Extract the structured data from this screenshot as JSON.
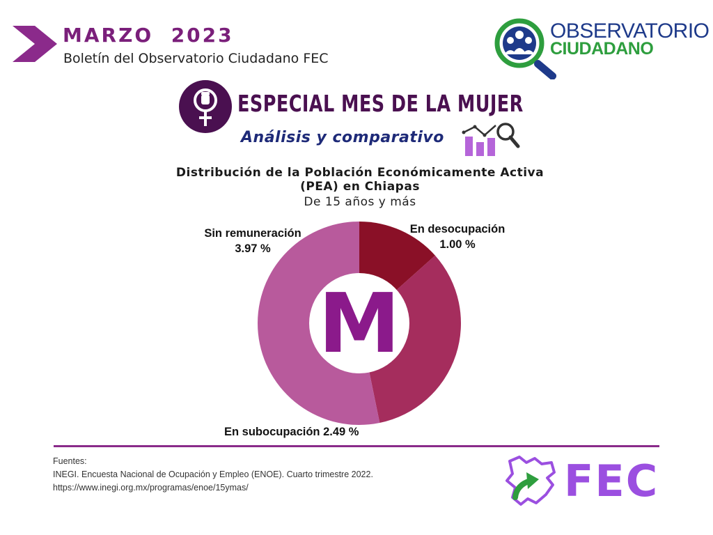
{
  "header": {
    "month_year": "MARZO  2023",
    "subtitle": "Boletín del Observatorio Ciudadano FEC"
  },
  "logo": {
    "line1": "OBSERVATORIO",
    "line2": "CIUDADANO"
  },
  "special": {
    "title": "ESPECIAL MES DE LA MUJER",
    "analysis": "Análisis y comparativo"
  },
  "chart_data": {
    "type": "pie",
    "title": "Distribución de la Población Económicamente Activa (PEA) en Chiapas",
    "subtitle": "De 15 años y más",
    "center_letter": "M",
    "slices": [
      {
        "label": "En desocupación",
        "value_label": "1.00 %",
        "value": 1.0,
        "color": "#8a1027"
      },
      {
        "label": "En subocupación",
        "value_label": "2.49 %",
        "value": 2.49,
        "color": "#a52d5d"
      },
      {
        "label": "Sin remuneración",
        "value_label": "3.97 %",
        "value": 3.97,
        "color": "#b85a9c"
      }
    ]
  },
  "labels": {
    "desocupacion_name": "En desocupación",
    "desocupacion_value": "1.00 %",
    "sin_remuneracion_name": "Sin remuneración",
    "sin_remuneracion_value": "3.97 %",
    "subocupacion_full": "En subocupación 2.49 %"
  },
  "footer": {
    "sources_heading": "Fuentes:",
    "source_line1": "INEGI. Encuesta Nacional de Ocupación y Empleo (ENOE). Cuarto trimestre 2022.",
    "source_line2": "https://www.inegi.org.mx/programas/enoe/15ymas/",
    "fec_text": "FEC"
  },
  "colors": {
    "purple_dark": "#4a1050",
    "purple_brand": "#7a1f7a",
    "navy": "#1e2a78",
    "green": "#2e9e3e",
    "fec_purple": "#9b4fe0"
  }
}
